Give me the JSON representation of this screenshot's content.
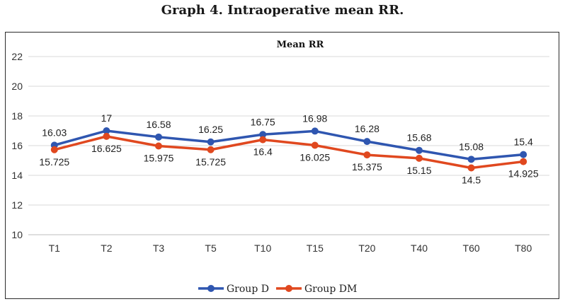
{
  "figure_caption": "Graph 4. Intraoperative mean RR.",
  "chart_data": {
    "type": "line",
    "title": "Mean RR",
    "xlabel": "",
    "ylabel": "",
    "categories": [
      "T1",
      "T2",
      "T3",
      "T5",
      "T10",
      "T15",
      "T20",
      "T40",
      "T60",
      "T80"
    ],
    "ylim": [
      10,
      22
    ],
    "yticks": [
      10,
      12,
      14,
      16,
      18,
      20,
      22
    ],
    "grid": true,
    "legend": "bottom",
    "series": [
      {
        "name": "Group D",
        "color": "#2f56b0",
        "values": [
          16.03,
          17,
          16.58,
          16.25,
          16.75,
          16.98,
          16.28,
          15.68,
          15.08,
          15.4
        ],
        "labels": [
          "16.03",
          "17",
          "16.58",
          "16.25",
          "16.75",
          "16.98",
          "16.28",
          "15.68",
          "15.08",
          "15.4"
        ]
      },
      {
        "name": "Group DM",
        "color": "#e0481f",
        "values": [
          15.725,
          16.625,
          15.975,
          15.725,
          16.4,
          16.025,
          15.375,
          15.15,
          14.5,
          14.925
        ],
        "labels": [
          "15.725",
          "16.625",
          "15.975",
          "15.725",
          "16.4",
          "16.025",
          "15.375",
          "15.15",
          "14.5",
          "14.925"
        ]
      }
    ]
  }
}
